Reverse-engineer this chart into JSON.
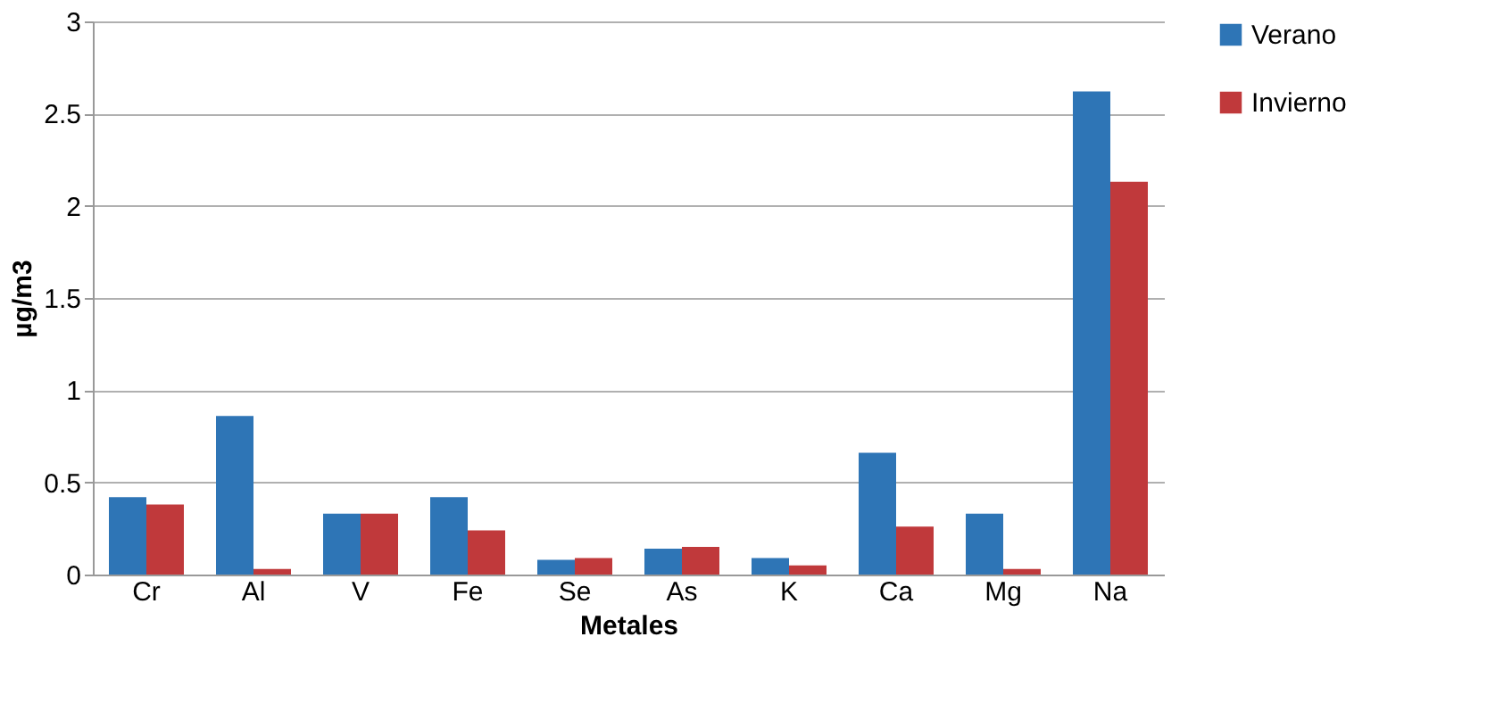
{
  "chart_data": {
    "type": "bar",
    "xlabel": "Metales",
    "ylabel": "µg/m3",
    "categories": [
      "Cr",
      "Al",
      "V",
      "Fe",
      "Se",
      "As",
      "K",
      "Ca",
      "Mg",
      "Na"
    ],
    "series": [
      {
        "name": "Verano",
        "color": "#2e75b6",
        "values": [
          0.42,
          0.86,
          0.33,
          0.42,
          0.08,
          0.14,
          0.09,
          0.66,
          0.33,
          2.62
        ]
      },
      {
        "name": "Invierno",
        "color": "#c0393b",
        "values": [
          0.38,
          0.03,
          0.33,
          0.24,
          0.09,
          0.15,
          0.05,
          0.26,
          0.03,
          2.13
        ]
      }
    ],
    "ylim": [
      0,
      3
    ],
    "yticks": [
      0,
      0.5,
      1,
      1.5,
      2,
      2.5,
      3
    ],
    "grid": "y",
    "legend": "right"
  }
}
